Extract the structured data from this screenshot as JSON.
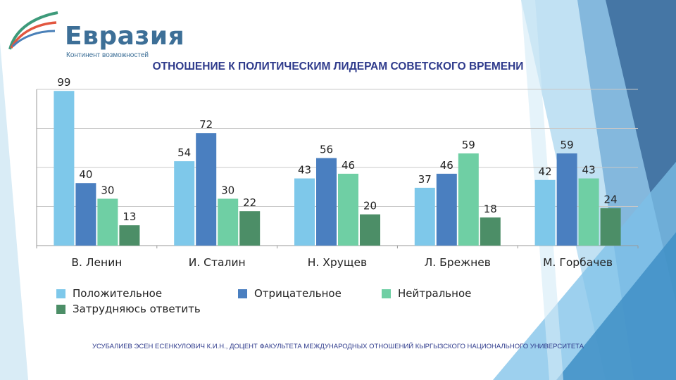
{
  "logo": {
    "name": "Евразия",
    "tagline": "Континент возможностей"
  },
  "colors": {
    "positive": "#7ec8ea",
    "negative": "#4a7fc0",
    "neutral": "#6fcfa4",
    "unsure": "#4c8e67",
    "title": "#2f3b8c"
  },
  "chart_data": {
    "type": "bar",
    "title": "ОТНОШЕНИЕ К ПОЛИТИЧЕСКИМ ЛИДЕРАМ СОВЕТСКОГО ВРЕМЕНИ",
    "categories": [
      "В. Ленин",
      "И. Сталин",
      "Н. Хрущев",
      "Л. Брежнев",
      "М. Горбачев"
    ],
    "series": [
      {
        "name": "Положительное",
        "values": [
          99,
          54,
          43,
          37,
          42
        ]
      },
      {
        "name": "Отрицательное",
        "values": [
          40,
          72,
          56,
          46,
          59
        ]
      },
      {
        "name": "Нейтральное",
        "values": [
          30,
          30,
          46,
          59,
          43
        ]
      },
      {
        "name": "Затрудняюсь ответить",
        "values": [
          13,
          22,
          20,
          18,
          24
        ]
      }
    ],
    "ylim": [
      0,
      100
    ],
    "grid": true,
    "legend": "bottom",
    "xlabel": "",
    "ylabel": ""
  },
  "footer": "УСУБАЛИЕВ ЭСЕН ЕСЕНКУЛОВИЧ К.И.Н., ДОЦЕНТ ФАКУЛЬТЕТА МЕЖДУНАРОДНЫХ ОТНОШЕНИЙ КЫРГЫЗСКОГО НАЦИОНАЛЬНОГО УНИВЕРСИТЕТА"
}
